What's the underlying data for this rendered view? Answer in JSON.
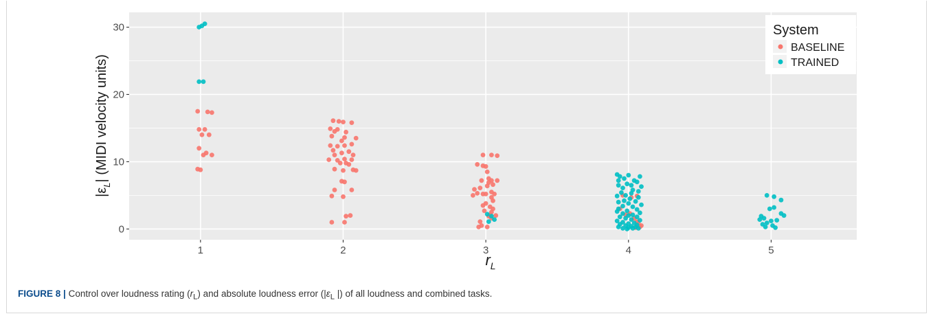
{
  "caption": {
    "figure_label": "FIGURE 8",
    "separator": "|",
    "text_a": " Control over loudness rating (",
    "sym_r": "r",
    "sub_L1": "L",
    "text_b": ") and absolute loudness error (|",
    "sym_eps": "ε",
    "sub_L2": "L",
    "text_c": " |) of all loudness and combined tasks."
  },
  "chart_data": {
    "type": "scatter",
    "xlabel": "r",
    "xlabel_sub": "L",
    "ylabel_prefix": "|ε",
    "ylabel_sub": "L",
    "ylabel_suffix": "| (MIDI velocity units)",
    "x_ticks": [
      "1",
      "2",
      "3",
      "4",
      "5"
    ],
    "y_ticks": [
      "0",
      "10",
      "20",
      "30"
    ],
    "xlim": [
      0.5,
      5.6
    ],
    "ylim": [
      -1.6,
      32.2
    ],
    "grid": true,
    "legend": {
      "title": "System",
      "placement": "top-right",
      "entries": [
        "BASELINE",
        "TRAINED"
      ]
    },
    "colors": {
      "BASELINE": "#f8766d",
      "TRAINED": "#00bfc4",
      "panel": "#ebebeb",
      "grid": "#ffffff"
    },
    "series": [
      {
        "name": "BASELINE",
        "points": [
          [
            0.98,
            17.5
          ],
          [
            1.05,
            17.4
          ],
          [
            1.08,
            17.3
          ],
          [
            0.99,
            14.8
          ],
          [
            1.03,
            14.8
          ],
          [
            1.06,
            14.0
          ],
          [
            1.01,
            14.0
          ],
          [
            0.99,
            12.0
          ],
          [
            1.04,
            11.3
          ],
          [
            1.08,
            11.0
          ],
          [
            1.02,
            11.0
          ],
          [
            0.98,
            8.9
          ],
          [
            1.0,
            8.8
          ],
          [
            1.93,
            16.1
          ],
          [
            1.97,
            16.0
          ],
          [
            2.0,
            15.9
          ],
          [
            2.06,
            15.8
          ],
          [
            1.91,
            14.9
          ],
          [
            1.96,
            14.8
          ],
          [
            1.94,
            14.5
          ],
          [
            2.02,
            14.4
          ],
          [
            1.92,
            13.8
          ],
          [
            2.01,
            13.6
          ],
          [
            2.09,
            13.5
          ],
          [
            1.99,
            13.1
          ],
          [
            1.91,
            12.4
          ],
          [
            1.96,
            12.3
          ],
          [
            2.06,
            12.6
          ],
          [
            2.01,
            12.4
          ],
          [
            1.93,
            11.7
          ],
          [
            2.04,
            11.5
          ],
          [
            1.99,
            11.3
          ],
          [
            1.94,
            11.0
          ],
          [
            2.07,
            11.0
          ],
          [
            1.9,
            10.3
          ],
          [
            1.96,
            10.2
          ],
          [
            2.01,
            10.4
          ],
          [
            2.06,
            10.3
          ],
          [
            2.02,
            9.8
          ],
          [
            1.98,
            9.8
          ],
          [
            2.04,
            9.6
          ],
          [
            1.94,
            8.9
          ],
          [
            2.0,
            8.7
          ],
          [
            2.07,
            8.8
          ],
          [
            2.09,
            8.7
          ],
          [
            1.99,
            7.1
          ],
          [
            2.01,
            7.0
          ],
          [
            1.94,
            5.8
          ],
          [
            2.06,
            5.8
          ],
          [
            1.92,
            4.9
          ],
          [
            2.0,
            4.8
          ],
          [
            2.05,
            2.0
          ],
          [
            2.02,
            1.9
          ],
          [
            1.92,
            1.0
          ],
          [
            2.01,
            1.0
          ],
          [
            3.04,
            11.0
          ],
          [
            2.98,
            11.0
          ],
          [
            3.08,
            10.9
          ],
          [
            2.94,
            9.6
          ],
          [
            2.98,
            9.4
          ],
          [
            3.0,
            9.3
          ],
          [
            3.01,
            8.5
          ],
          [
            3.02,
            7.5
          ],
          [
            3.04,
            7.2
          ],
          [
            2.97,
            7.2
          ],
          [
            3.02,
            6.9
          ],
          [
            3.05,
            6.6
          ],
          [
            3.08,
            7.2
          ],
          [
            2.96,
            6.1
          ],
          [
            3.01,
            6.4
          ],
          [
            2.92,
            5.9
          ],
          [
            2.94,
            5.3
          ],
          [
            3.0,
            5.2
          ],
          [
            3.04,
            5.5
          ],
          [
            3.06,
            5.2
          ],
          [
            2.91,
            5.0
          ],
          [
            2.98,
            5.2
          ],
          [
            3.04,
            4.7
          ],
          [
            3.05,
            4.2
          ],
          [
            3.0,
            3.8
          ],
          [
            2.98,
            3.5
          ],
          [
            3.03,
            3.3
          ],
          [
            3.05,
            3.0
          ],
          [
            2.99,
            2.7
          ],
          [
            3.04,
            2.5
          ],
          [
            3.03,
            2.1
          ],
          [
            3.07,
            2.0
          ],
          [
            3.02,
            1.9
          ],
          [
            3.04,
            1.6
          ],
          [
            2.96,
            1.1
          ],
          [
            2.97,
            0.5
          ],
          [
            3.01,
            0.3
          ],
          [
            2.95,
            0.3
          ],
          [
            3.96,
            5.0
          ],
          [
            4.06,
            4.9
          ],
          [
            4.02,
            4.7
          ],
          [
            3.94,
            3.0
          ],
          [
            4.01,
            2.3
          ],
          [
            3.98,
            2.1
          ],
          [
            4.04,
            1.6
          ],
          [
            4.06,
            1.1
          ],
          [
            4.07,
            0.8
          ],
          [
            4.09,
            0.5
          ],
          [
            4.08,
            0.3
          ],
          [
            4.05,
            0.2
          ]
        ]
      },
      {
        "name": "TRAINED",
        "points": [
          [
            1.03,
            30.5
          ],
          [
            1.01,
            30.2
          ],
          [
            0.99,
            30.0
          ],
          [
            0.99,
            21.9
          ],
          [
            1.02,
            21.9
          ],
          [
            3.01,
            2.2
          ],
          [
            3.04,
            1.9
          ],
          [
            3.06,
            1.4
          ],
          [
            3.02,
            1.1
          ],
          [
            3.92,
            8.1
          ],
          [
            4.0,
            8.0
          ],
          [
            3.94,
            7.8
          ],
          [
            4.08,
            7.8
          ],
          [
            3.97,
            7.5
          ],
          [
            4.04,
            7.2
          ],
          [
            3.93,
            7.2
          ],
          [
            4.06,
            7.0
          ],
          [
            3.99,
            6.7
          ],
          [
            4.02,
            6.5
          ],
          [
            3.93,
            6.5
          ],
          [
            4.09,
            6.3
          ],
          [
            3.96,
            6.1
          ],
          [
            4.03,
            5.8
          ],
          [
            4.07,
            5.6
          ],
          [
            3.95,
            5.4
          ],
          [
            4.02,
            5.3
          ],
          [
            3.98,
            5.0
          ],
          [
            3.92,
            4.9
          ],
          [
            4.07,
            4.7
          ],
          [
            4.01,
            4.5
          ],
          [
            3.97,
            4.2
          ],
          [
            4.05,
            4.1
          ],
          [
            3.93,
            4.0
          ],
          [
            4.0,
            3.8
          ],
          [
            4.09,
            3.6
          ],
          [
            3.96,
            3.4
          ],
          [
            4.03,
            3.3
          ],
          [
            3.93,
            3.0
          ],
          [
            4.06,
            2.9
          ],
          [
            3.99,
            2.7
          ],
          [
            3.92,
            2.6
          ],
          [
            4.08,
            2.4
          ],
          [
            3.96,
            2.3
          ],
          [
            4.03,
            2.1
          ],
          [
            4.0,
            2.0
          ],
          [
            3.94,
            1.8
          ],
          [
            4.06,
            1.8
          ],
          [
            3.98,
            1.6
          ],
          [
            4.02,
            1.4
          ],
          [
            4.08,
            1.3
          ],
          [
            3.92,
            1.2
          ],
          [
            3.96,
            1.0
          ],
          [
            4.04,
            0.9
          ],
          [
            4.0,
            0.8
          ],
          [
            3.94,
            0.7
          ],
          [
            4.06,
            0.6
          ],
          [
            3.98,
            0.5
          ],
          [
            4.02,
            0.4
          ],
          [
            3.93,
            0.3
          ],
          [
            4.05,
            0.3
          ],
          [
            4.0,
            0.2
          ],
          [
            3.96,
            0.1
          ],
          [
            4.07,
            0.1
          ],
          [
            4.03,
            0.1
          ],
          [
            3.99,
            0.0
          ],
          [
            4.97,
            5.0
          ],
          [
            5.02,
            4.8
          ],
          [
            5.07,
            4.3
          ],
          [
            5.02,
            3.2
          ],
          [
            4.99,
            3.0
          ],
          [
            5.07,
            2.3
          ],
          [
            5.09,
            2.0
          ],
          [
            4.93,
            1.9
          ],
          [
            4.95,
            1.6
          ],
          [
            4.92,
            1.4
          ],
          [
            5.04,
            1.3
          ],
          [
            5.0,
            1.2
          ],
          [
            4.97,
            0.9
          ],
          [
            4.94,
            0.7
          ],
          [
            5.01,
            0.5
          ],
          [
            4.96,
            0.3
          ],
          [
            5.03,
            0.2
          ]
        ]
      }
    ]
  }
}
